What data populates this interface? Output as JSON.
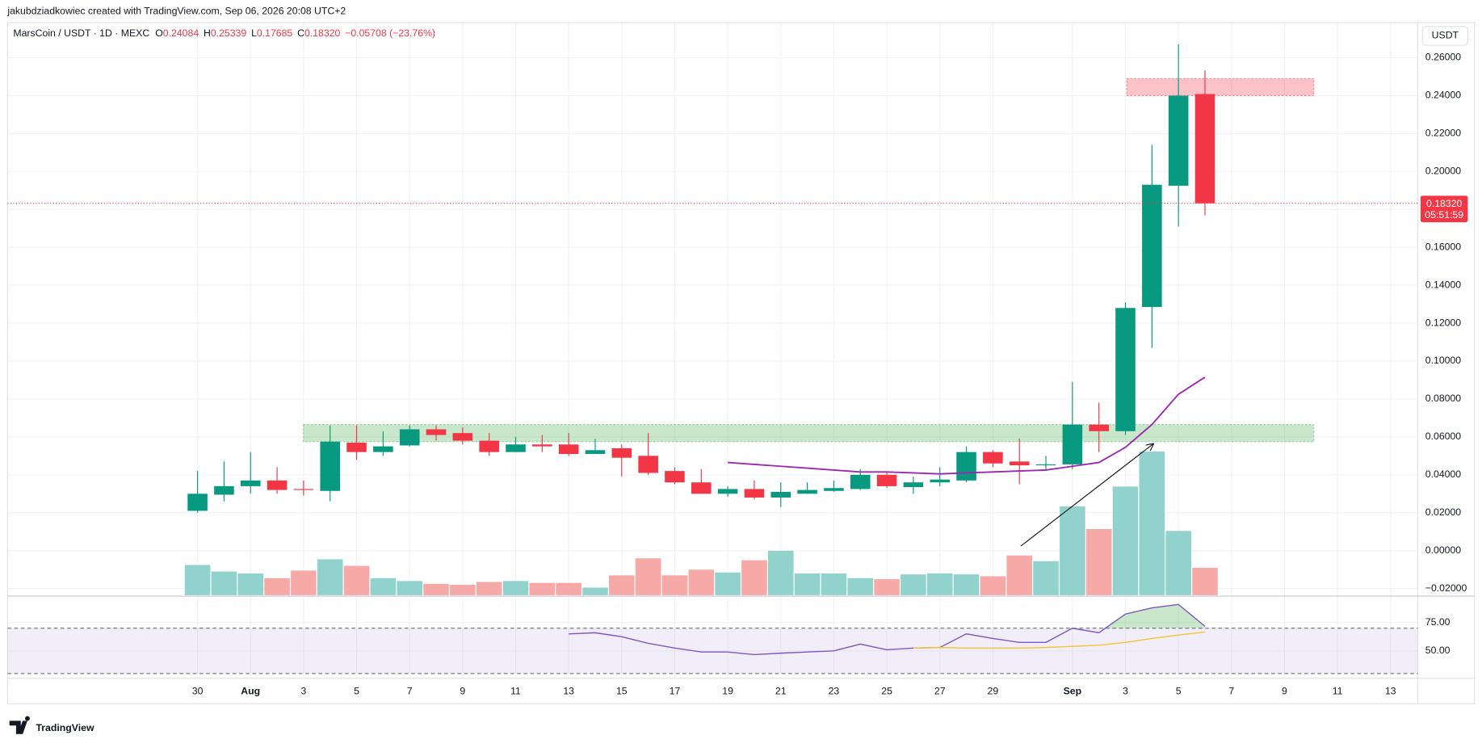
{
  "header": {
    "credit": "jakubdziadkowiec created with TradingView.com, Sep 06, 2026 20:08 UTC+2",
    "symbol": "MarsCoin / USDT · 1D · MEXC",
    "open_key": "O",
    "open": "0.24084",
    "high_key": "H",
    "high": "0.25339",
    "low_key": "L",
    "low": "0.17685",
    "close_key": "C",
    "close": "0.18320",
    "change": "−0.05708 (−23.76%)"
  },
  "currency": "USDT",
  "last_price": {
    "value": 0.1832,
    "label": "0.18320",
    "countdown": "05:51:59",
    "color": "#f23645"
  },
  "logo": "TradingView",
  "chart_data": [
    {
      "type": "candlestick",
      "categories": [
        "30",
        null,
        "Aug",
        null,
        "3",
        null,
        "5",
        null,
        "7",
        null,
        "9",
        null,
        "11",
        null,
        "13",
        null,
        "15",
        null,
        "17",
        null,
        "19",
        null,
        "21",
        null,
        "23",
        null,
        "25",
        null,
        "27",
        null,
        "29",
        null,
        null,
        "Sep",
        null,
        "3",
        null,
        "5",
        null,
        "7",
        null,
        "9",
        null,
        "11",
        null,
        "13"
      ],
      "open": [
        0.021,
        0.0295,
        0.034,
        0.037,
        0.0325,
        0.0315,
        0.057,
        0.052,
        0.0555,
        0.064,
        0.062,
        0.058,
        0.052,
        0.056,
        0.056,
        0.051,
        0.054,
        0.05,
        0.042,
        0.036,
        0.03,
        0.0325,
        0.028,
        0.03,
        0.0315,
        0.0325,
        0.04,
        0.0335,
        0.036,
        0.037,
        0.052,
        0.047,
        0.045,
        0.0455,
        0.0665,
        0.063,
        0.1285,
        0.1925,
        0.24084,
        null,
        null,
        null,
        null,
        null,
        null,
        null
      ],
      "high": [
        0.042,
        0.047,
        0.052,
        0.044,
        0.037,
        0.066,
        0.066,
        0.063,
        0.066,
        0.066,
        0.065,
        0.062,
        0.06,
        0.061,
        0.062,
        0.059,
        0.056,
        0.062,
        0.044,
        0.043,
        0.034,
        0.037,
        0.036,
        0.036,
        0.037,
        0.043,
        0.041,
        0.039,
        0.044,
        0.055,
        0.053,
        0.059,
        0.05,
        0.089,
        0.078,
        0.131,
        0.214,
        0.267,
        0.25339,
        null,
        null,
        null,
        null,
        null,
        null,
        null
      ],
      "low": [
        0.02,
        0.026,
        0.03,
        0.03,
        0.029,
        0.026,
        0.048,
        0.05,
        0.055,
        0.058,
        0.056,
        0.05,
        0.052,
        0.052,
        0.05,
        0.051,
        0.039,
        0.04,
        0.035,
        0.03,
        0.0285,
        0.027,
        0.023,
        0.03,
        0.031,
        0.032,
        0.033,
        0.03,
        0.034,
        0.036,
        0.044,
        0.035,
        0.042,
        0.043,
        0.052,
        0.061,
        0.107,
        0.171,
        0.17685,
        null,
        null,
        null,
        null,
        null,
        null,
        null
      ],
      "close": [
        0.03,
        0.034,
        0.037,
        0.032,
        0.032,
        0.0575,
        0.052,
        0.055,
        0.064,
        0.061,
        0.058,
        0.052,
        0.056,
        0.055,
        0.051,
        0.053,
        0.049,
        0.041,
        0.036,
        0.03,
        0.0325,
        0.028,
        0.031,
        0.032,
        0.033,
        0.04,
        0.034,
        0.036,
        0.0375,
        0.052,
        0.046,
        0.045,
        0.0455,
        0.0665,
        0.063,
        0.128,
        0.193,
        0.24,
        0.1832,
        null,
        null,
        null,
        null,
        null,
        null,
        null
      ],
      "up_color": "#089981",
      "down_color": "#f23645",
      "volume": {
        "values": [
          32,
          25,
          23,
          18,
          26,
          38,
          31,
          18,
          15,
          12,
          11,
          14,
          15,
          13,
          13,
          8,
          21,
          39,
          21,
          27,
          24,
          37,
          47,
          23,
          23,
          18,
          17,
          22,
          23,
          22,
          20,
          42,
          36,
          94,
          70,
          115,
          152,
          68,
          29,
          null,
          null,
          null,
          null,
          null,
          null,
          null
        ],
        "up_color": "#92d2cc",
        "down_color": "#f7a9a7"
      },
      "ma": {
        "color": "#9c27b0",
        "values": [
          null,
          null,
          null,
          null,
          null,
          null,
          null,
          null,
          null,
          null,
          null,
          null,
          null,
          null,
          null,
          null,
          null,
          null,
          null,
          null,
          0.0465,
          0.0455,
          0.0445,
          0.0435,
          0.0425,
          0.0415,
          0.0415,
          0.041,
          0.0405,
          0.041,
          0.0415,
          0.042,
          0.0425,
          0.0445,
          0.0465,
          0.0545,
          0.0665,
          0.0825,
          0.0915,
          null,
          null,
          null,
          null,
          null,
          null,
          null
        ]
      },
      "zones": [
        {
          "low": 0.24,
          "high": 0.249,
          "color": "#f23645"
        },
        {
          "low": 0.0575,
          "high": 0.0665,
          "color": "#4caf50"
        }
      ],
      "ylim": [
        -0.0235,
        0.2765
      ],
      "yticks": [
        {
          "value": -0.02,
          "label": "−0.02000"
        },
        {
          "value": 0,
          "label": "0.00000"
        },
        {
          "value": 0.02,
          "label": "0.02000"
        },
        {
          "value": 0.04,
          "label": "0.04000"
        },
        {
          "value": 0.06,
          "label": "0.06000"
        },
        {
          "value": 0.08,
          "label": "0.08000"
        },
        {
          "value": 0.1,
          "label": "0.10000"
        },
        {
          "value": 0.12,
          "label": "0.12000"
        },
        {
          "value": 0.14,
          "label": "0.14000"
        },
        {
          "value": 0.16,
          "label": "0.16000"
        },
        {
          "value": 0.18,
          "label": "0.18000"
        },
        {
          "value": 0.2,
          "label": "0.20000"
        },
        {
          "value": 0.22,
          "label": "0.22000"
        },
        {
          "value": 0.24,
          "label": "0.24000"
        },
        {
          "value": 0.26,
          "label": "0.26000"
        }
      ],
      "grid": true
    },
    {
      "type": "line",
      "series": [
        {
          "color": "#7e57c2",
          "values": [
            null,
            null,
            null,
            null,
            null,
            null,
            null,
            null,
            null,
            null,
            null,
            null,
            null,
            null,
            65,
            66,
            62.5,
            56.7,
            52.5,
            49,
            49,
            46.7,
            48,
            49,
            50,
            56,
            51,
            52.5,
            53,
            65,
            61,
            57.5,
            57.5,
            70,
            66,
            82.5,
            88,
            91,
            71.7,
            null,
            null,
            null,
            null,
            null,
            null,
            null
          ]
        },
        {
          "color": "#f5c431",
          "values": [
            null,
            null,
            null,
            null,
            null,
            null,
            null,
            null,
            null,
            null,
            null,
            null,
            null,
            null,
            null,
            null,
            null,
            null,
            null,
            null,
            null,
            null,
            null,
            null,
            null,
            null,
            null,
            52.5,
            53,
            52.5,
            52.5,
            52.5,
            53,
            54,
            55,
            57.5,
            61,
            64,
            66.7,
            null,
            null,
            null,
            null,
            null,
            null,
            null
          ]
        }
      ],
      "bands": [
        70,
        30
      ],
      "ylim": [
        25.8,
        97.5
      ],
      "yticks": [
        {
          "value": 75,
          "label": "75.00"
        },
        {
          "value": 50,
          "label": "50.00"
        }
      ]
    }
  ]
}
